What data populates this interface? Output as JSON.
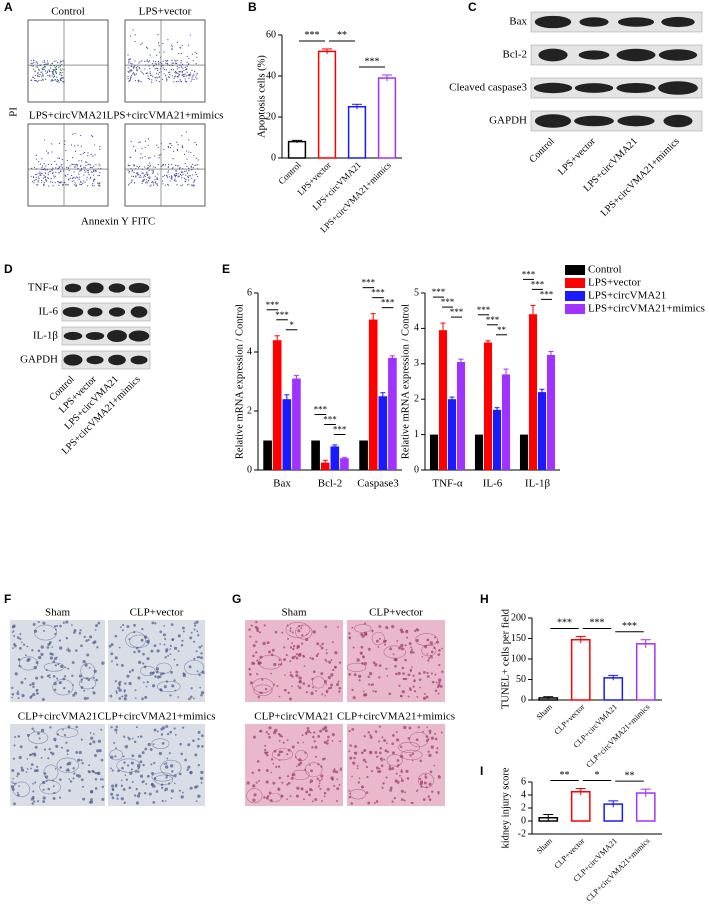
{
  "panel_letters": [
    "A",
    "B",
    "C",
    "D",
    "E",
    "F",
    "G",
    "H",
    "I"
  ],
  "flow_cytometry": {
    "plots": [
      "Control",
      "LPS+vector",
      "LPS+circVMA21",
      "LPS+circVMA21+mimics"
    ],
    "y_label": "PI",
    "x_label": "Annexin Y FITC"
  },
  "western_blots": [
    {
      "proteins": [
        "Bax",
        "Bcl-2",
        "Cleaved caspase3",
        "GAPDH"
      ],
      "lanes": [
        "Control",
        "LPS+vector",
        "LPS+circVMA21",
        "LPS+circVMA21+mimics"
      ]
    },
    {
      "proteins": [
        "TNF-α",
        "IL-6",
        "IL-1β",
        "GAPDH"
      ],
      "lanes": [
        "Control",
        "LPS+vector",
        "LPS+circVMA21",
        "LPS+circVMA21+mimics"
      ]
    }
  ],
  "histology": [
    {
      "images": [
        "Sham",
        "CLP+vector",
        "CLP+circVMA21",
        "CLP+circVMA21+mimics"
      ]
    },
    {
      "images": [
        "Sham",
        "CLP+vector",
        "CLP+circVMA21",
        "CLP+circVMA21+mimics"
      ]
    }
  ],
  "chart_data": [
    {
      "type": "bar",
      "y_label": "Apoptosis cells (%)",
      "categories": [
        "Control",
        "LPS+vector",
        "LPS+circVMA21",
        "LPS+circVMA21+mimics"
      ],
      "values": [
        8,
        52,
        25,
        39
      ],
      "errors": [
        0.6,
        1.2,
        1.2,
        1.5
      ],
      "colors": [
        "#000000",
        "#ff0000",
        "#1a1aff",
        "#a033ff"
      ],
      "ylim": [
        0,
        60
      ],
      "yticks": [
        0,
        20,
        40,
        60
      ],
      "significance": [
        "***",
        "**",
        "***"
      ]
    },
    {
      "type": "grouped_bar",
      "y_label": "Relative mRNA expression / Control",
      "categories": [
        "Bax",
        "Bcl-2",
        "Caspase3"
      ],
      "series": [
        {
          "name": "Control",
          "color": "#000000",
          "values": [
            1,
            1,
            1
          ]
        },
        {
          "name": "LPS+vector",
          "color": "#ff0000",
          "values": [
            4.4,
            0.25,
            5.1
          ],
          "errors": [
            0.15,
            0.08,
            0.2
          ]
        },
        {
          "name": "LPS+circVMA21",
          "color": "#1a1aff",
          "values": [
            2.4,
            0.8,
            2.5
          ],
          "errors": [
            0.15,
            0.05,
            0.12
          ]
        },
        {
          "name": "LPS+circVMA21+mimics",
          "color": "#a033ff",
          "values": [
            3.1,
            0.4,
            3.8
          ],
          "errors": [
            0.1,
            0.03,
            0.07
          ]
        }
      ],
      "ylim": [
        0,
        6
      ],
      "yticks": [
        0,
        2,
        4,
        6
      ],
      "significance": [
        [
          "***",
          "***",
          "*"
        ],
        [
          "***",
          "***",
          "***"
        ],
        [
          "***",
          "***",
          "***"
        ]
      ]
    },
    {
      "type": "grouped_bar",
      "y_label": "Relative mRNA expression / Control",
      "categories": [
        "TNF-α",
        "IL-6",
        "IL-1β"
      ],
      "series": [
        {
          "name": "Control",
          "color": "#000000",
          "values": [
            1,
            1,
            1
          ]
        },
        {
          "name": "LPS+vector",
          "color": "#ff0000",
          "values": [
            3.95,
            3.6,
            4.4
          ],
          "errors": [
            0.2,
            0.05,
            0.25
          ]
        },
        {
          "name": "LPS+circVMA21",
          "color": "#1a1aff",
          "values": [
            2.0,
            1.7,
            2.2
          ],
          "errors": [
            0.06,
            0.06,
            0.08
          ]
        },
        {
          "name": "LPS+circVMA21+mimics",
          "color": "#a033ff",
          "values": [
            3.05,
            2.7,
            3.25
          ],
          "errors": [
            0.08,
            0.15,
            0.1
          ]
        }
      ],
      "ylim": [
        0,
        5
      ],
      "yticks": [
        0,
        1,
        2,
        3,
        4,
        5
      ],
      "legend": "right",
      "significance": [
        [
          "***",
          "***",
          "***"
        ],
        [
          "***",
          "***",
          "**"
        ],
        [
          "***",
          "***",
          "***"
        ]
      ]
    },
    {
      "type": "bar",
      "y_label": "TUNEL+ cells per field",
      "categories": [
        "Sham",
        "CLP+vector",
        "CLP+circVMA21",
        "CLP+circVMA21+mimics"
      ],
      "values": [
        5,
        147,
        54,
        137
      ],
      "errors": [
        3,
        8,
        6,
        10
      ],
      "colors": [
        "#000000",
        "#ff0000",
        "#1a1aff",
        "#a033ff"
      ],
      "ylim": [
        0,
        200
      ],
      "yticks": [
        0,
        50,
        100,
        150,
        200
      ],
      "significance": [
        "***",
        "***",
        "***"
      ]
    },
    {
      "type": "bar",
      "y_label": "kidney injury score",
      "categories": [
        "Sham",
        "CLP+vector",
        "CLP+circVMA21",
        "CLP+circVMA21+mimics"
      ],
      "values": [
        0.5,
        4.5,
        2.6,
        4.3
      ],
      "errors": [
        0.5,
        0.5,
        0.5,
        0.6
      ],
      "colors": [
        "#000000",
        "#ff0000",
        "#1a1aff",
        "#a033ff"
      ],
      "ylim": [
        -2,
        6
      ],
      "yticks": [
        -2,
        0,
        2,
        4,
        6
      ],
      "significance": [
        "**",
        "*",
        "**"
      ]
    }
  ]
}
